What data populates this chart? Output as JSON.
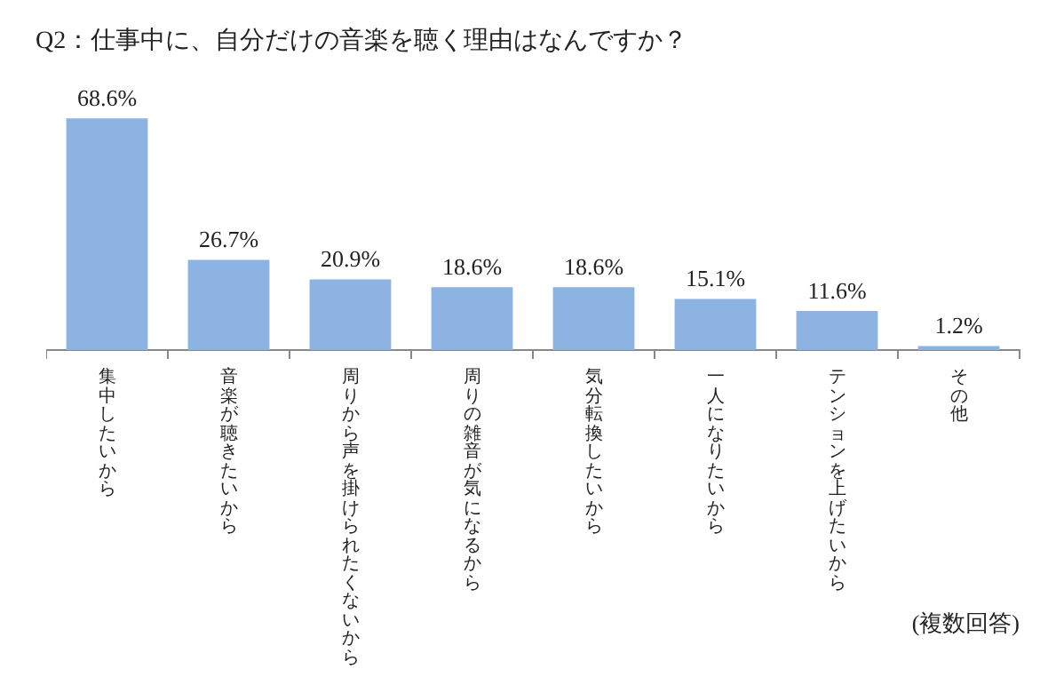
{
  "chart_data": {
    "type": "bar",
    "title": "Q2：仕事中に、自分だけの音楽を聴く理由はなんですか？",
    "categories": [
      "集中したいから",
      "音楽が聴きたいから",
      "周りから声を掛けられたくないから",
      "周りの雑音が気になるから",
      "気分転換したいから",
      "一人になりたいから",
      "テンションを上げたいから",
      "その他"
    ],
    "values": [
      68.6,
      26.7,
      20.9,
      18.6,
      18.6,
      15.1,
      11.6,
      1.2
    ],
    "value_labels": [
      "68.6%",
      "26.7%",
      "20.9%",
      "18.6%",
      "18.6%",
      "15.1%",
      "11.6%",
      "1.2%"
    ],
    "color": "#8db3e2",
    "annotations": [
      "(複数回答)"
    ]
  }
}
